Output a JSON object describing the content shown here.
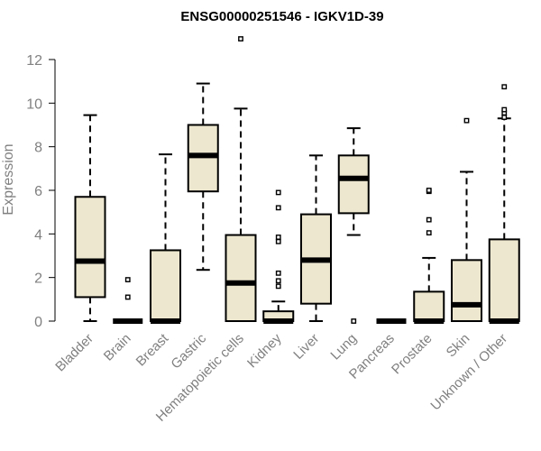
{
  "chart_data": {
    "type": "box",
    "title": "ENSG00000251546 - IGKV1D-39",
    "ylabel": "Expression",
    "xlabel": "",
    "ylim": [
      0,
      12.5
    ],
    "yticks": [
      0,
      2,
      4,
      6,
      8,
      10,
      12
    ],
    "grid": false,
    "colors": {
      "box_fill": "#ede7cf",
      "box_stroke": "#000000",
      "median": "#000000"
    },
    "categories": [
      "Bladder",
      "Brain",
      "Breast",
      "Gastric",
      "Hematopoietic cells",
      "Kidney",
      "Liver",
      "Lung",
      "Pancreas",
      "Prostate",
      "Skin",
      "Unknown / Other"
    ],
    "boxes": [
      {
        "min": 0.0,
        "q1": 1.1,
        "median": 2.75,
        "q3": 5.7,
        "max": 9.45,
        "outliers": []
      },
      {
        "min": 0.0,
        "q1": 0.0,
        "median": 0.0,
        "q3": 0.0,
        "max": 0.0,
        "outliers": [
          1.1,
          1.9
        ]
      },
      {
        "min": 0.0,
        "q1": 0.0,
        "median": 0.0,
        "q3": 3.25,
        "max": 7.65,
        "outliers": []
      },
      {
        "min": 2.35,
        "q1": 5.95,
        "median": 7.6,
        "q3": 9.0,
        "max": 10.9,
        "outliers": []
      },
      {
        "min": 0.0,
        "q1": 0.0,
        "median": 1.75,
        "q3": 3.95,
        "max": 9.75,
        "outliers": [
          12.95
        ]
      },
      {
        "min": 0.0,
        "q1": 0.0,
        "median": 0.0,
        "q3": 0.45,
        "max": 0.9,
        "outliers": [
          1.6,
          1.85,
          2.2,
          3.65,
          3.85,
          5.2,
          5.9
        ]
      },
      {
        "min": 0.0,
        "q1": 0.8,
        "median": 2.8,
        "q3": 4.9,
        "max": 7.6,
        "outliers": []
      },
      {
        "min": 3.95,
        "q1": 4.95,
        "median": 6.55,
        "q3": 7.6,
        "max": 8.85,
        "outliers": [
          0.0
        ]
      },
      {
        "min": 0.0,
        "q1": 0.0,
        "median": 0.0,
        "q3": 0.0,
        "max": 0.0,
        "outliers": []
      },
      {
        "min": 0.0,
        "q1": 0.0,
        "median": 0.0,
        "q3": 1.35,
        "max": 2.9,
        "outliers": [
          4.05,
          4.65,
          5.95,
          6.0
        ]
      },
      {
        "min": 0.0,
        "q1": 0.0,
        "median": 0.75,
        "q3": 2.8,
        "max": 6.85,
        "outliers": [
          9.2
        ]
      },
      {
        "min": 0.0,
        "q1": 0.0,
        "median": 0.0,
        "q3": 3.75,
        "max": 9.3,
        "outliers": [
          9.35,
          9.55,
          9.7,
          10.75
        ]
      }
    ]
  }
}
